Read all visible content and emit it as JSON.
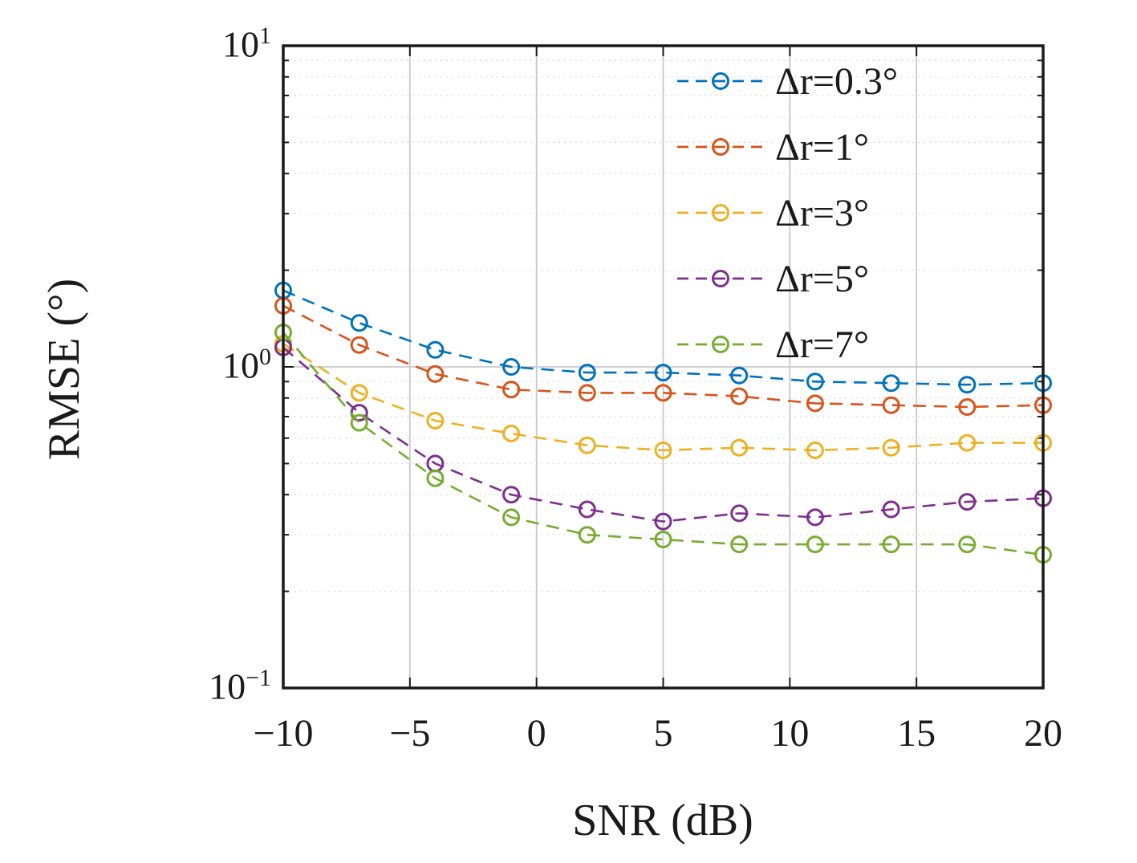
{
  "chart_data": {
    "type": "line",
    "title": "",
    "xlabel": "SNR (dB)",
    "ylabel": "RMSE (°)",
    "yscale": "log",
    "grid": true,
    "legend_position": "top-right",
    "xlim": [
      -10,
      20
    ],
    "ylim_log10": [
      -1,
      1
    ],
    "x": [
      -10,
      -7,
      -4,
      -1,
      2,
      5,
      8,
      11,
      14,
      17,
      20
    ],
    "xticks": [
      -10,
      -5,
      0,
      5,
      10,
      15,
      20
    ],
    "xtick_labels": [
      "−10",
      "−5",
      "0",
      "5",
      "10",
      "15",
      "20"
    ],
    "yticks_exp": [
      1,
      0,
      -1
    ],
    "ytick_labels": [
      {
        "base": "10",
        "exp": "1"
      },
      {
        "base": "10",
        "exp": "0"
      },
      {
        "base": "10",
        "exp": "−1"
      }
    ],
    "series": [
      {
        "name": "Δr=0.3°",
        "color": "#0072BD",
        "values": [
          1.73,
          1.37,
          1.13,
          1.0,
          0.96,
          0.96,
          0.94,
          0.9,
          0.89,
          0.88,
          0.89
        ]
      },
      {
        "name": "Δr=1°",
        "color": "#D95319",
        "values": [
          1.55,
          1.17,
          0.95,
          0.85,
          0.83,
          0.83,
          0.81,
          0.77,
          0.76,
          0.75,
          0.76
        ]
      },
      {
        "name": "Δr=3°",
        "color": "#EDB120",
        "values": [
          1.18,
          0.83,
          0.68,
          0.62,
          0.57,
          0.55,
          0.56,
          0.55,
          0.56,
          0.58,
          0.58
        ]
      },
      {
        "name": "Δr=5°",
        "color": "#7E2F8E",
        "values": [
          1.15,
          0.72,
          0.5,
          0.4,
          0.36,
          0.33,
          0.35,
          0.34,
          0.36,
          0.38,
          0.39
        ]
      },
      {
        "name": "Δr=7°",
        "color": "#77AC30",
        "values": [
          1.28,
          0.67,
          0.45,
          0.34,
          0.3,
          0.29,
          0.28,
          0.28,
          0.28,
          0.28,
          0.26
        ]
      }
    ]
  }
}
